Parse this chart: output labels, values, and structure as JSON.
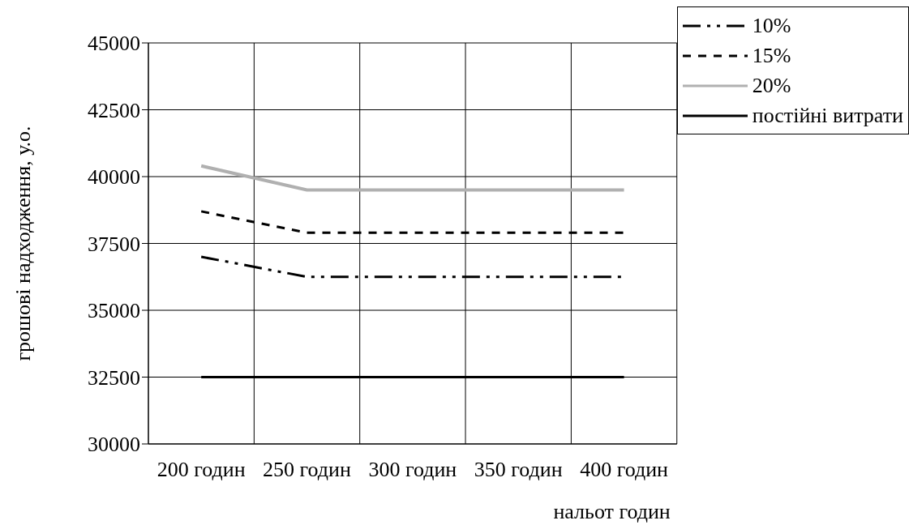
{
  "chart_data": {
    "type": "line",
    "xlabel": "нальот годин",
    "ylabel": "грошові надходження, у.о.",
    "categories": [
      "200 годин",
      "250 годин",
      "300 годин",
      "350 годин",
      "400 годин"
    ],
    "series": [
      {
        "name": "10%",
        "color": "#000000",
        "line_style": "dashed",
        "values": [
          37000,
          36250,
          36250,
          36250,
          36250
        ]
      },
      {
        "name": "15%",
        "color": "#000000",
        "line_style": "dotted",
        "values": [
          38700,
          37900,
          37900,
          37900,
          37900
        ]
      },
      {
        "name": "20%",
        "color": "#b0b0b0",
        "line_style": "solid",
        "values": [
          40400,
          39500,
          39500,
          39500,
          39500
        ]
      },
      {
        "name": "постійні витрати",
        "color": "#000000",
        "line_style": "solid",
        "values": [
          32500,
          32500,
          32500,
          32500,
          32500
        ]
      }
    ],
    "ylim": [
      30000,
      45000
    ],
    "yticks": [
      30000,
      32500,
      35000,
      37500,
      40000,
      42500,
      45000
    ],
    "grid": true,
    "legend": "top right",
    "marker": "none"
  }
}
